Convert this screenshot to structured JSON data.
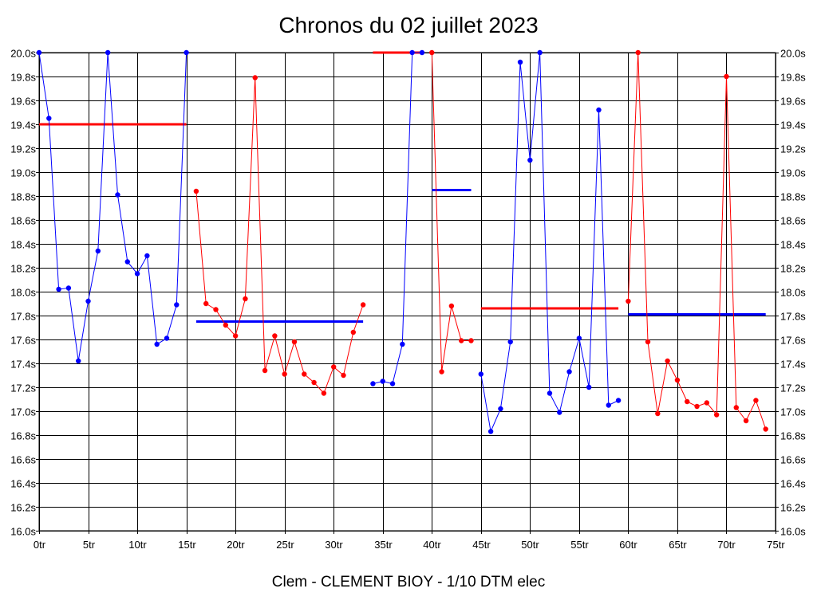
{
  "chart_data": {
    "type": "line",
    "title": "Chronos du 02 juillet 2023",
    "footer": "Clem - CLEMENT BIOY - 1/10 DTM elec",
    "xlim": [
      0,
      75
    ],
    "ylim": [
      16.0,
      20.0
    ],
    "x_ticks": [
      {
        "value": 0,
        "label": "0tr"
      },
      {
        "value": 5,
        "label": "5tr"
      },
      {
        "value": 10,
        "label": "10tr"
      },
      {
        "value": 15,
        "label": "15tr"
      },
      {
        "value": 20,
        "label": "20tr"
      },
      {
        "value": 25,
        "label": "25tr"
      },
      {
        "value": 30,
        "label": "30tr"
      },
      {
        "value": 35,
        "label": "35tr"
      },
      {
        "value": 40,
        "label": "40tr"
      },
      {
        "value": 45,
        "label": "45tr"
      },
      {
        "value": 50,
        "label": "50tr"
      },
      {
        "value": 55,
        "label": "55tr"
      },
      {
        "value": 60,
        "label": "60tr"
      },
      {
        "value": 65,
        "label": "65tr"
      },
      {
        "value": 70,
        "label": "70tr"
      },
      {
        "value": 75,
        "label": "75tr"
      }
    ],
    "y_ticks": [
      {
        "value": 20.0,
        "label": "20.0s"
      },
      {
        "value": 19.8,
        "label": "19.8s"
      },
      {
        "value": 19.6,
        "label": "19.6s"
      },
      {
        "value": 19.4,
        "label": "19.4s"
      },
      {
        "value": 19.2,
        "label": "19.2s"
      },
      {
        "value": 19.0,
        "label": "19.0s"
      },
      {
        "value": 18.8,
        "label": "18.8s"
      },
      {
        "value": 18.6,
        "label": "18.6s"
      },
      {
        "value": 18.4,
        "label": "18.4s"
      },
      {
        "value": 18.2,
        "label": "18.2s"
      },
      {
        "value": 18.0,
        "label": "18.0s"
      },
      {
        "value": 17.8,
        "label": "17.8s"
      },
      {
        "value": 17.6,
        "label": "17.6s"
      },
      {
        "value": 17.4,
        "label": "17.4s"
      },
      {
        "value": 17.2,
        "label": "17.2s"
      },
      {
        "value": 17.0,
        "label": "17.0s"
      },
      {
        "value": 16.8,
        "label": "16.8s"
      },
      {
        "value": 16.6,
        "label": "16.6s"
      },
      {
        "value": 16.4,
        "label": "16.4s"
      },
      {
        "value": 16.2,
        "label": "16.2s"
      },
      {
        "value": 16.0,
        "label": "16.0s"
      }
    ],
    "grid": true,
    "colors": {
      "blue": "#0000ff",
      "red": "#ff0000",
      "grid": "#000000"
    },
    "series": [
      {
        "color": "#0000ff",
        "x": [
          0,
          1,
          2,
          3,
          4,
          5,
          6,
          7,
          8,
          9,
          10,
          11,
          12,
          13,
          14,
          15
        ],
        "y": [
          20.0,
          19.45,
          18.02,
          18.03,
          17.42,
          17.92,
          18.34,
          20.0,
          18.81,
          18.25,
          18.15,
          18.3,
          17.56,
          17.61,
          17.89,
          20.0
        ]
      },
      {
        "color": "#ff0000",
        "x": [
          16,
          17,
          18,
          19,
          20,
          21,
          22,
          23,
          24,
          25,
          26,
          27,
          28,
          29,
          30,
          31,
          32,
          33
        ],
        "y": [
          18.84,
          17.9,
          17.85,
          17.72,
          17.63,
          17.94,
          19.79,
          17.34,
          17.63,
          17.31,
          17.58,
          17.31,
          17.24,
          17.15,
          17.37,
          17.3,
          17.66,
          17.89
        ]
      },
      {
        "color": "#0000ff",
        "x": [
          34,
          35,
          36,
          37,
          38,
          39
        ],
        "y": [
          17.23,
          17.25,
          17.23,
          17.56,
          20.0,
          20.0
        ]
      },
      {
        "color": "#ff0000",
        "x": [
          40,
          41,
          42,
          43,
          44
        ],
        "y": [
          20.0,
          17.33,
          17.88,
          17.59,
          17.59
        ]
      },
      {
        "color": "#0000ff",
        "x": [
          45,
          46,
          47,
          48,
          49,
          50,
          51,
          52,
          53,
          54,
          55,
          56,
          57,
          58,
          59
        ],
        "y": [
          17.31,
          16.83,
          17.02,
          17.58,
          19.92,
          19.1,
          20.0,
          17.15,
          16.99,
          17.33,
          17.61,
          17.2,
          19.52,
          17.05,
          17.09
        ]
      },
      {
        "color": "#ff0000",
        "x": [
          60,
          61,
          62,
          63,
          64,
          65,
          66,
          67,
          68,
          69,
          70,
          71,
          72,
          73,
          74
        ],
        "y": [
          17.92,
          20.0,
          17.58,
          16.98,
          17.42,
          17.26,
          17.08,
          17.04,
          17.07,
          16.97,
          19.8,
          17.03,
          16.92,
          17.09,
          16.85
        ]
      }
    ],
    "averages": [
      {
        "color": "#ff0000",
        "x_start": 0,
        "x_end": 15,
        "y": 19.4
      },
      {
        "color": "#0000ff",
        "x_start": 16,
        "x_end": 33,
        "y": 17.75
      },
      {
        "color": "#ff0000",
        "x_start": 34,
        "x_end": 39,
        "y": 20.0
      },
      {
        "color": "#0000ff",
        "x_start": 40,
        "x_end": 44,
        "y": 18.85
      },
      {
        "color": "#ff0000",
        "x_start": 45,
        "x_end": 59,
        "y": 17.86
      },
      {
        "color": "#0000ff",
        "x_start": 60,
        "x_end": 74,
        "y": 17.81
      }
    ]
  }
}
